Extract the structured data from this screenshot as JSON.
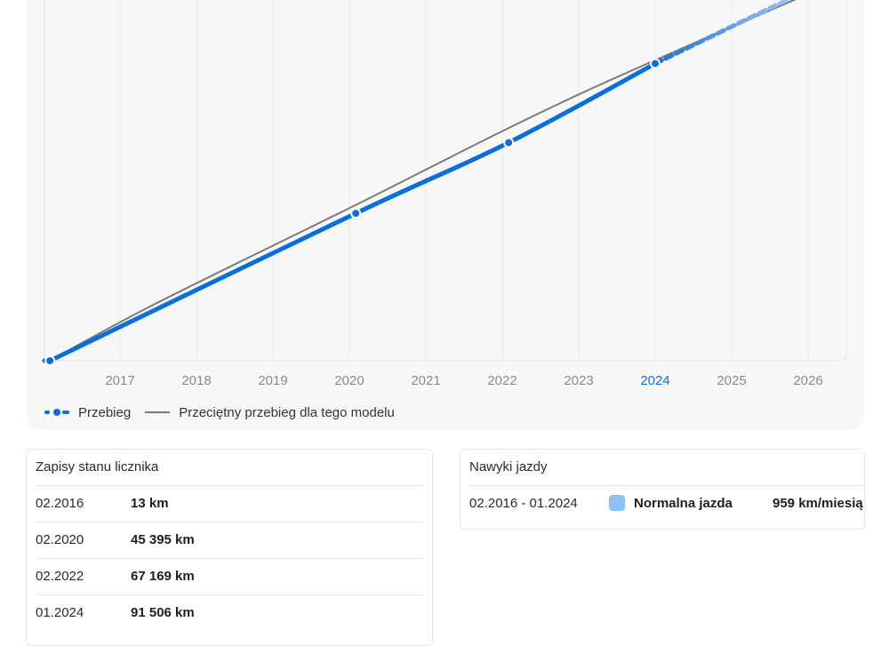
{
  "chart_data": {
    "type": "line",
    "x_ticks": [
      "2017",
      "2018",
      "2019",
      "2020",
      "2021",
      "2022",
      "2023",
      "2024",
      "2025",
      "2026"
    ],
    "active_tick": "2024",
    "series": [
      {
        "name": "Przebieg",
        "color": "#0a6fdc",
        "style": "solid-with-markers, dashed projection",
        "points": [
          {
            "x": "2016-02",
            "y_km": 13
          },
          {
            "x": "2020-02",
            "y_km": 45395
          },
          {
            "x": "2022-02",
            "y_km": 67169
          },
          {
            "x": "2024-01",
            "y_km": 91506
          }
        ],
        "projection": [
          {
            "x": "2024-01",
            "y_km": 91506
          },
          {
            "x": "2026-06",
            "y_km": 119000
          }
        ]
      },
      {
        "name": "Przeciętny przebieg dla tego modelu",
        "color": "#7a7a7a",
        "style": "solid",
        "points": [
          {
            "x": "2016-02",
            "y_km": 13
          },
          {
            "x": "2017-06",
            "y_km": 17000
          },
          {
            "x": "2020-01",
            "y_km": 47000
          },
          {
            "x": "2023-01",
            "y_km": 82000
          },
          {
            "x": "2026-07",
            "y_km": 118000
          }
        ]
      }
    ],
    "grid": "vertical",
    "legend_position": "bottom-left"
  },
  "legend": {
    "mileage": "Przebieg",
    "average": "Przeciętny przebieg dla tego modelu"
  },
  "odometer": {
    "title": "Zapisy stanu licznika",
    "rows": [
      {
        "date": "02.2016",
        "km": "13 km"
      },
      {
        "date": "02.2020",
        "km": "45 395 km"
      },
      {
        "date": "02.2022",
        "km": "67 169 km"
      },
      {
        "date": "01.2024",
        "km": "91 506 km"
      }
    ]
  },
  "habits": {
    "title": "Nawyki jazdy",
    "range": "02.2016 - 01.2024",
    "label": "Normalna jazda",
    "rate": "959 km/miesią",
    "swatch_color": "#8fc1f7"
  }
}
